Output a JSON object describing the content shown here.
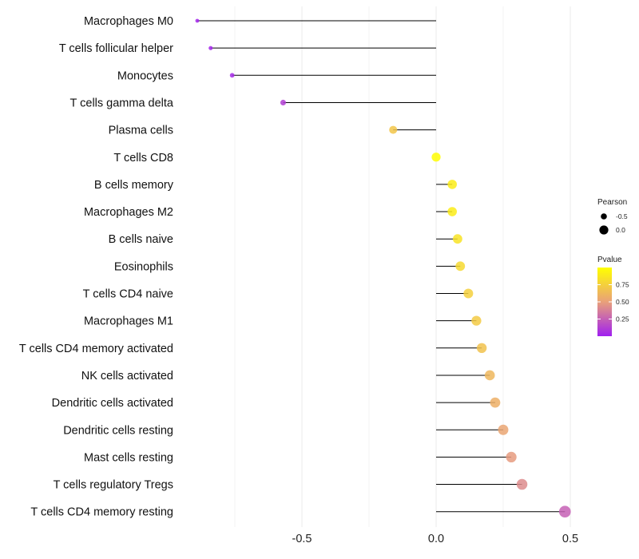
{
  "chart_data": {
    "type": "lollipop",
    "categories": [
      "Macrophages M0",
      "T cells follicular helper",
      "Monocytes",
      "T cells gamma delta",
      "Plasma cells",
      "T cells CD8",
      "B cells memory",
      "Macrophages M2",
      "B cells naive",
      "Eosinophils",
      "T cells CD4 naive",
      "Macrophages M1",
      "T cells CD4 memory activated",
      "NK cells activated",
      "Dendritic cells activated",
      "Dendritic cells resting",
      "Mast cells resting",
      "T cells regulatory  Tregs",
      "T cells CD4 memory resting"
    ],
    "series": [
      {
        "name": "Pearson",
        "values": [
          -0.89,
          -0.84,
          -0.76,
          -0.57,
          -0.16,
          0.0,
          0.06,
          0.06,
          0.08,
          0.09,
          0.12,
          0.15,
          0.17,
          0.2,
          0.22,
          0.25,
          0.28,
          0.32,
          0.48
        ]
      },
      {
        "name": "Pvalue",
        "values": [
          0.02,
          0.02,
          0.04,
          0.12,
          0.7,
          0.99,
          0.9,
          0.9,
          0.85,
          0.8,
          0.75,
          0.72,
          0.68,
          0.62,
          0.58,
          0.53,
          0.48,
          0.42,
          0.25
        ]
      }
    ],
    "xlim": [
      -1.0,
      0.55
    ],
    "xticks": [
      -0.5,
      0.0,
      0.5
    ],
    "xtick_labels": [
      "-0.5",
      "0.0",
      "0.5"
    ],
    "title": "",
    "xlabel": "",
    "ylabel": "",
    "legend": {
      "placement": "right",
      "size_title": "Pearson",
      "size_entries": [
        {
          "label": "-0.5",
          "value": -0.5
        },
        {
          "label": "0.0",
          "value": 0.0
        }
      ],
      "color_title": "Pvalue",
      "color_ticks": [
        {
          "label": "0.75",
          "value": 0.75
        },
        {
          "label": "0.50",
          "value": 0.5
        },
        {
          "label": "0.25",
          "value": 0.25
        }
      ],
      "color_range": [
        0.0,
        1.0
      ],
      "color_low": "#a020f0",
      "color_mid": "#e9a07a",
      "color_high": "#ffff00"
    },
    "colors": {
      "stem": "#000000",
      "grid": "#ebebeb"
    }
  }
}
